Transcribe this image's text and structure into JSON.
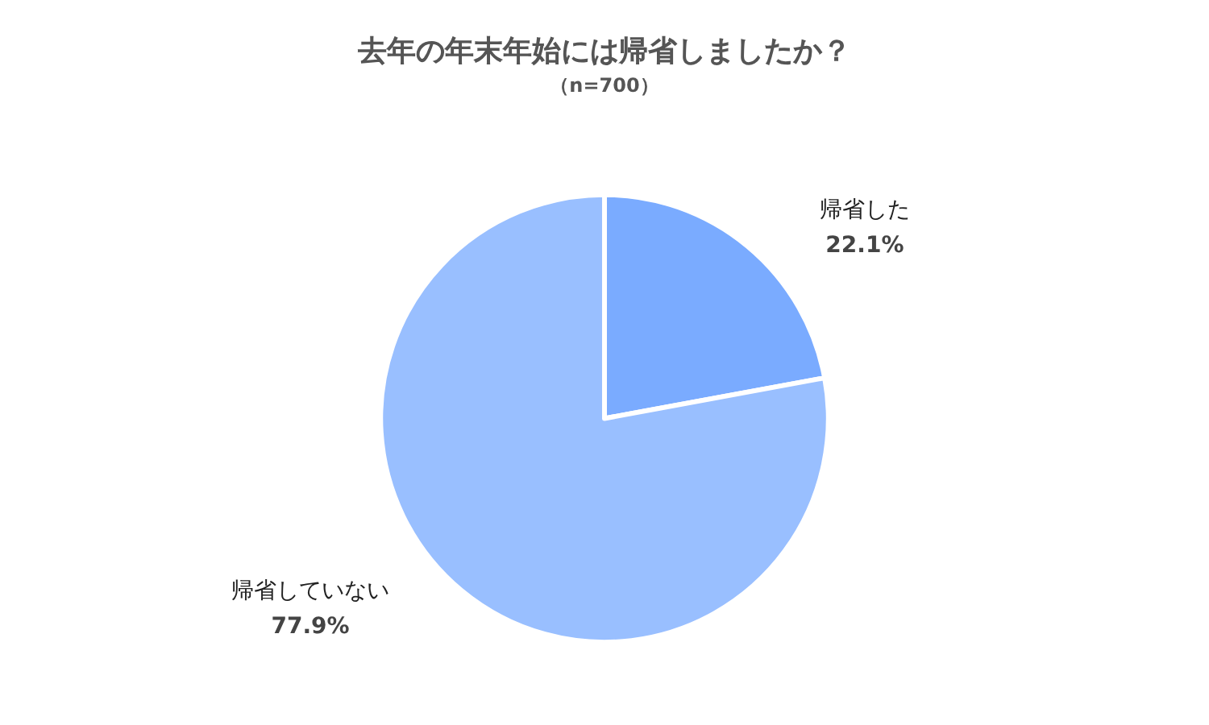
{
  "chart_data": {
    "type": "pie",
    "title": "去年の年末年始には帰省しましたか？",
    "subtitle": "（n=700）",
    "categories": [
      "帰省した",
      "帰省していない"
    ],
    "values": [
      22.1,
      77.9
    ],
    "colors": [
      "#7aabff",
      "#99bfff"
    ],
    "value_labels": [
      "22.1%",
      "77.9%"
    ],
    "legend": false
  }
}
